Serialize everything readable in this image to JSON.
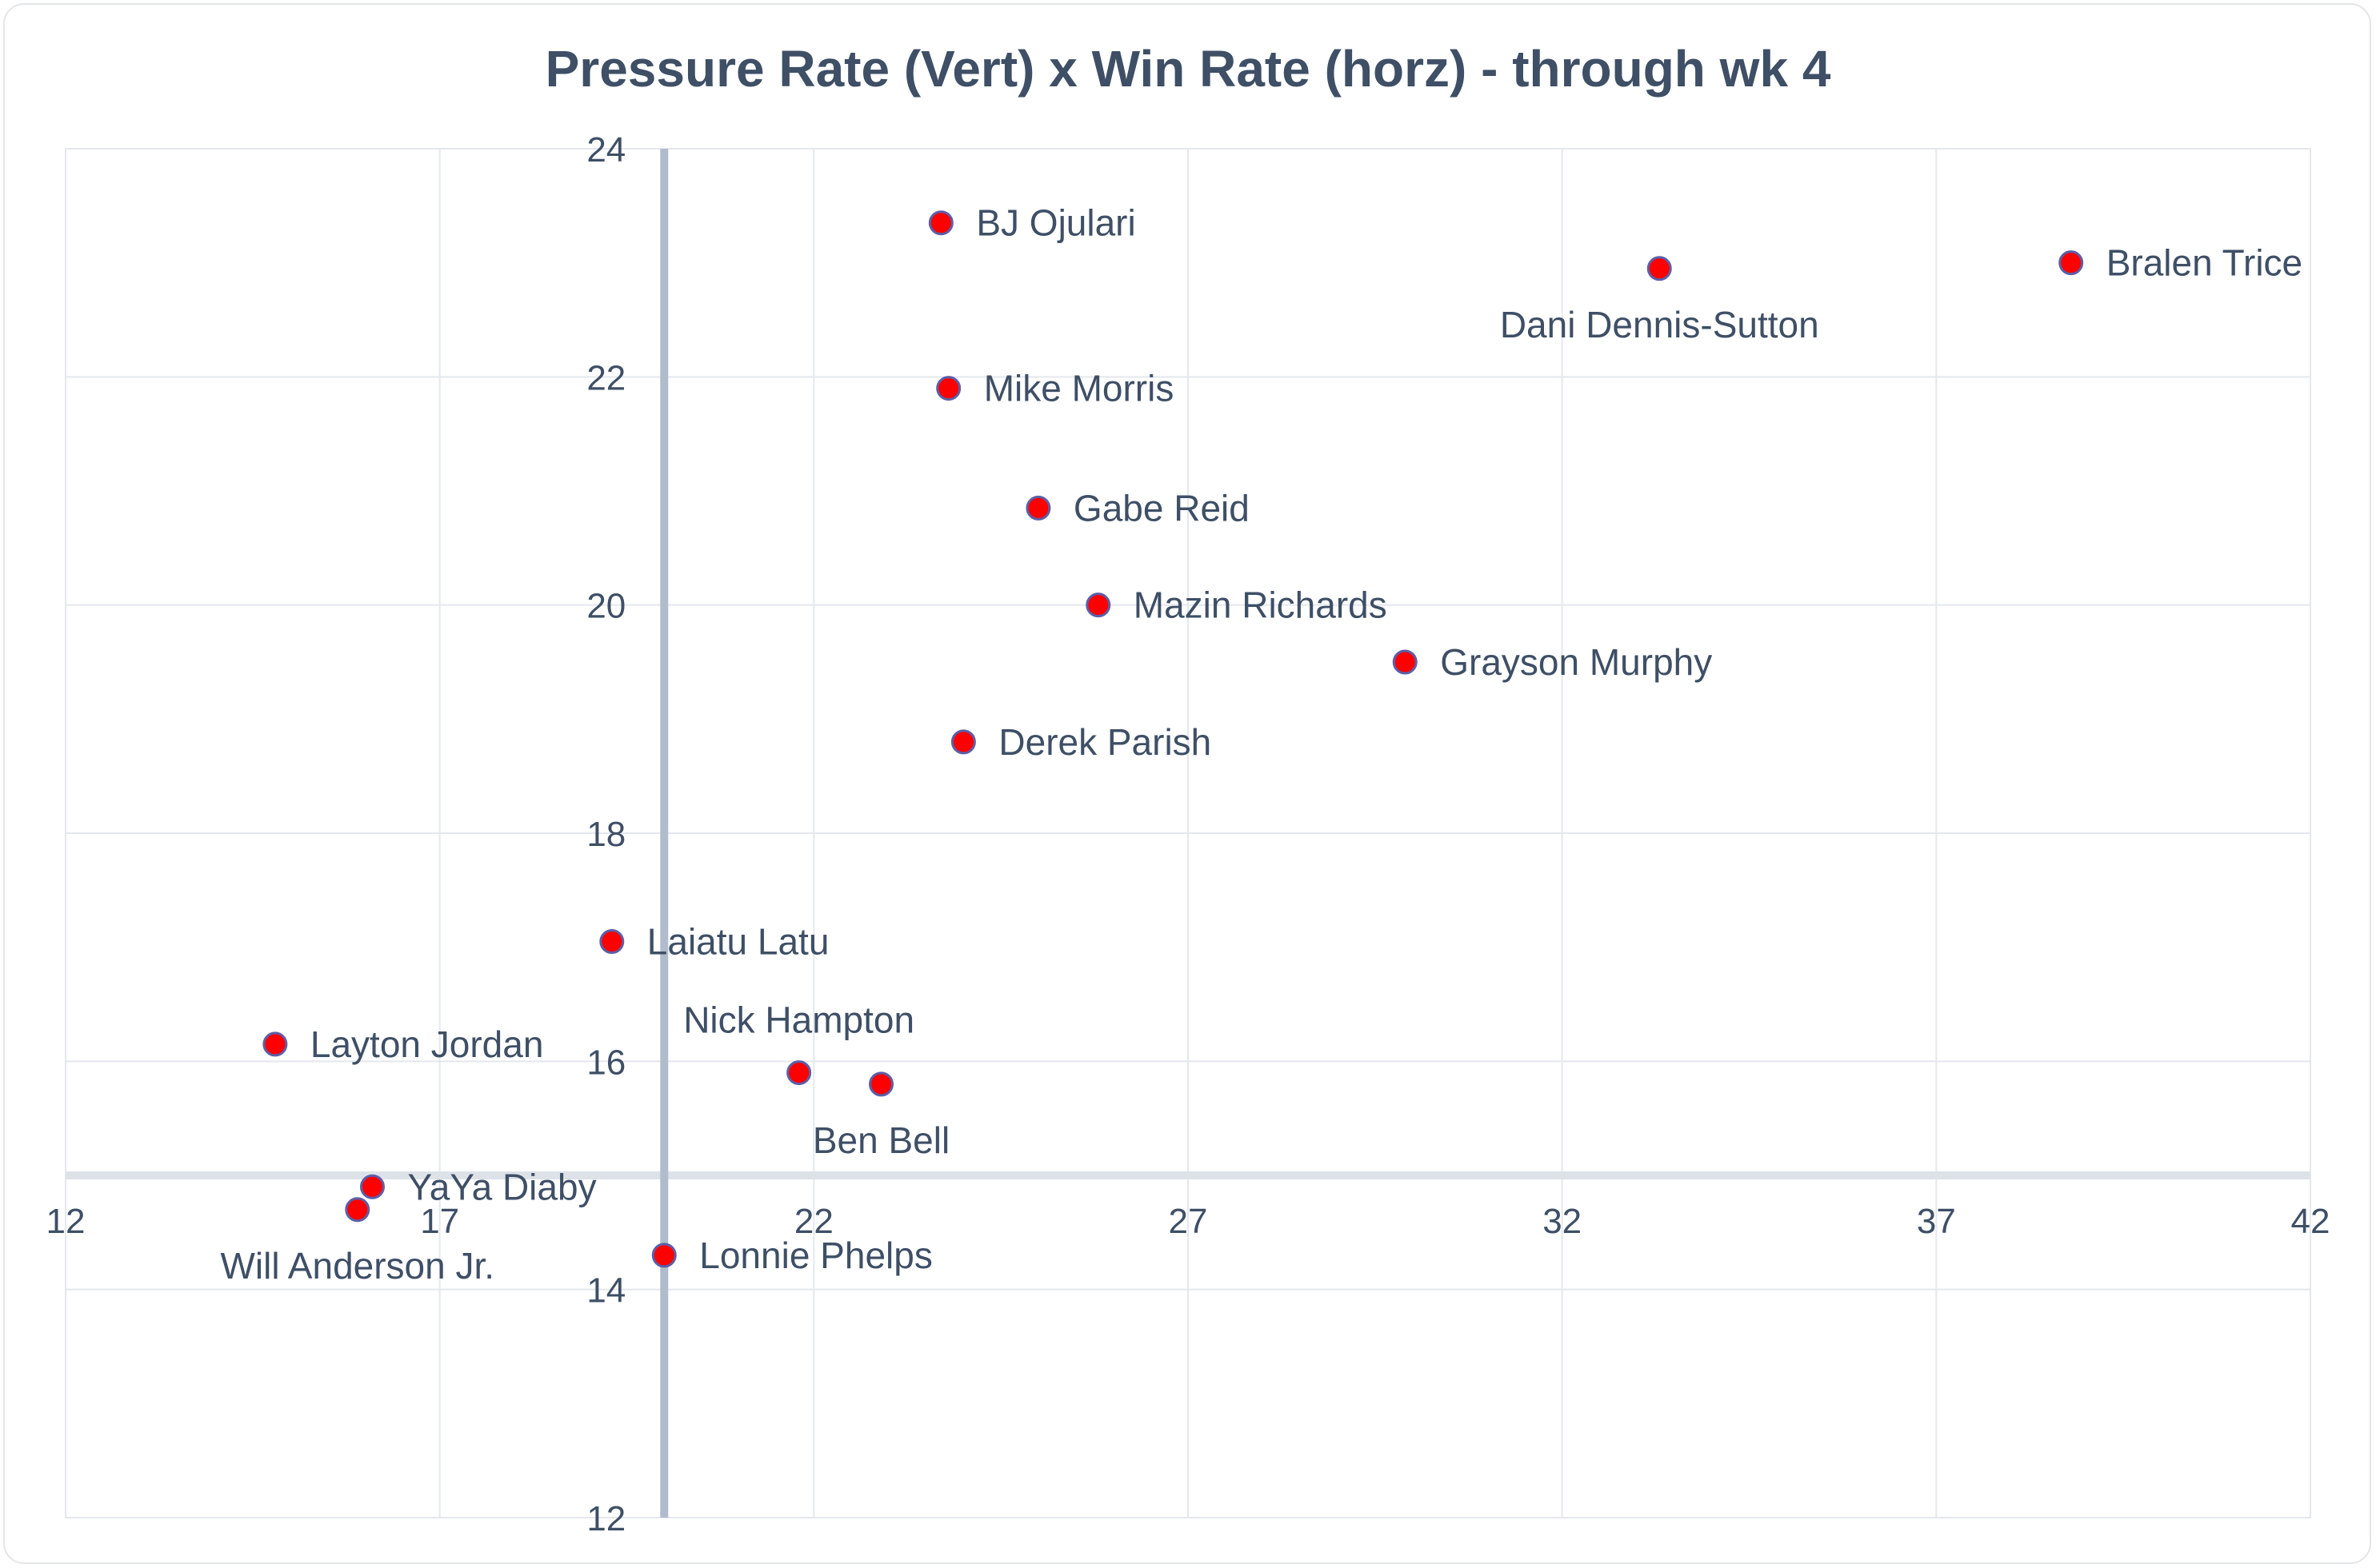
{
  "chart_data": {
    "type": "scatter",
    "title": "Pressure Rate (Vert) x Win Rate (horz) - through wk 4",
    "xlabel": "",
    "ylabel": "",
    "xlim": [
      12,
      42
    ],
    "ylim": [
      12,
      24
    ],
    "x_ticks": [
      12,
      17,
      22,
      27,
      32,
      37,
      42
    ],
    "y_ticks": [
      12,
      14,
      16,
      18,
      20,
      22,
      24
    ],
    "x_axis_crosses_at_y": 15,
    "y_axis_crosses_at_x": 20,
    "grid": true,
    "marker_color": "#ff0000",
    "marker_outline": "#5b5fa8",
    "points": [
      {
        "name": "BJ Ojulari",
        "x": 23.7,
        "y": 23.35,
        "label_pos": "right"
      },
      {
        "name": "Dani Dennis-Sutton",
        "x": 33.3,
        "y": 22.95,
        "label_pos": "below"
      },
      {
        "name": "Bralen Trice",
        "x": 38.8,
        "y": 23.0,
        "label_pos": "right"
      },
      {
        "name": "Mike Morris",
        "x": 23.8,
        "y": 21.9,
        "label_pos": "right"
      },
      {
        "name": "Gabe Reid",
        "x": 25.0,
        "y": 20.85,
        "label_pos": "right"
      },
      {
        "name": "Mazin Richards",
        "x": 25.8,
        "y": 20.0,
        "label_pos": "right"
      },
      {
        "name": "Grayson Murphy",
        "x": 29.9,
        "y": 19.5,
        "label_pos": "right"
      },
      {
        "name": "Derek Parish",
        "x": 24.0,
        "y": 18.8,
        "label_pos": "right"
      },
      {
        "name": "Laiatu Latu",
        "x": 19.3,
        "y": 17.05,
        "label_pos": "right"
      },
      {
        "name": "Nick Hampton",
        "x": 21.8,
        "y": 15.9,
        "label_pos": "above"
      },
      {
        "name": "Ben Bell",
        "x": 22.9,
        "y": 15.8,
        "label_pos": "below"
      },
      {
        "name": "Layton Jordan",
        "x": 14.8,
        "y": 16.15,
        "label_pos": "right"
      },
      {
        "name": "YaYa Diaby",
        "x": 16.1,
        "y": 14.9,
        "label_pos": "right"
      },
      {
        "name": "Will Anderson Jr.",
        "x": 15.9,
        "y": 14.7,
        "label_pos": "below"
      },
      {
        "name": "Lonnie Phelps",
        "x": 20.0,
        "y": 14.3,
        "label_pos": "right"
      }
    ]
  }
}
